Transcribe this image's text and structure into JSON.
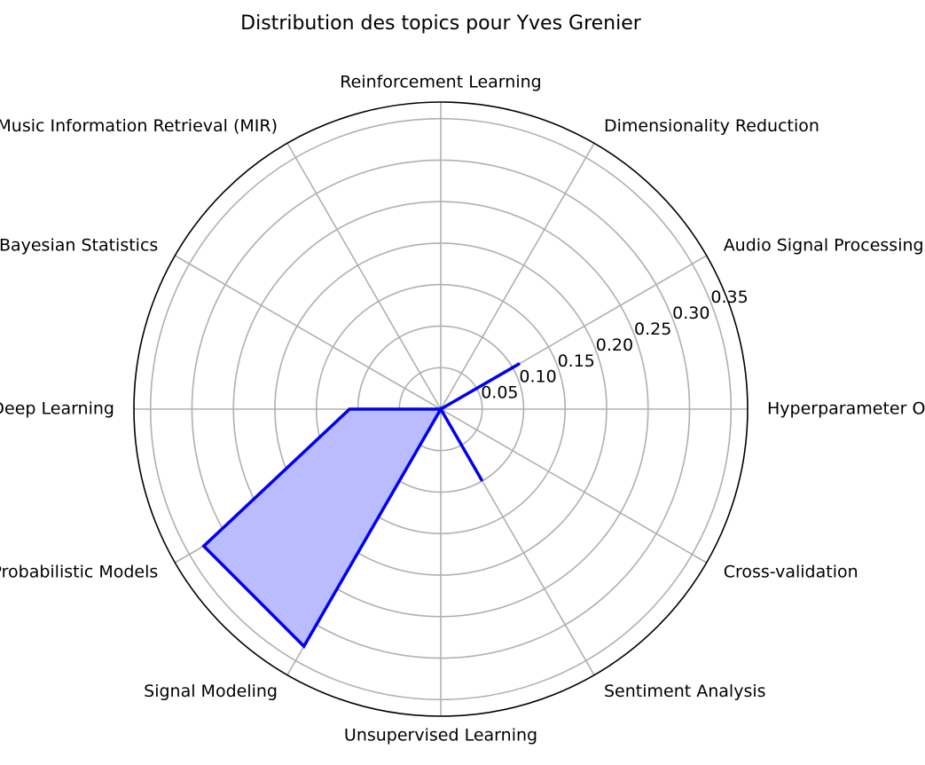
{
  "chart_data": {
    "type": "radar",
    "title": "Distribution des topics pour Yves Grenier",
    "categories": [
      "Hyperparameter Optimization",
      "Audio Signal Processing",
      "Dimensionality Reduction",
      "Reinforcement Learning",
      "Machine Listening and Music Information Retrieval (MIR)",
      "Bayesian Statistics",
      "Deep Learning",
      "Probabilistic Models",
      "Signal Modeling",
      "Unsupervised Learning",
      "Sentiment Analysis",
      "Cross-validation"
    ],
    "series": [
      {
        "values": [
          0.0,
          0.11,
          0.0,
          0.0,
          0.0,
          0.0,
          0.11,
          0.33,
          0.33,
          0.0,
          0.1,
          0.0
        ]
      }
    ],
    "rlim": [
      0,
      0.37
    ],
    "rticks": [
      0.05,
      0.1,
      0.15,
      0.2,
      0.25,
      0.3,
      0.35
    ],
    "rtick_labels": [
      "0.05",
      "0.10",
      "0.15",
      "0.20",
      "0.25",
      "0.30",
      "0.35"
    ],
    "grid": true,
    "colors": {
      "line": "#0000ee",
      "fill": "#bbbbff",
      "grid": "#b0b0b0",
      "frame": "#000000"
    }
  }
}
